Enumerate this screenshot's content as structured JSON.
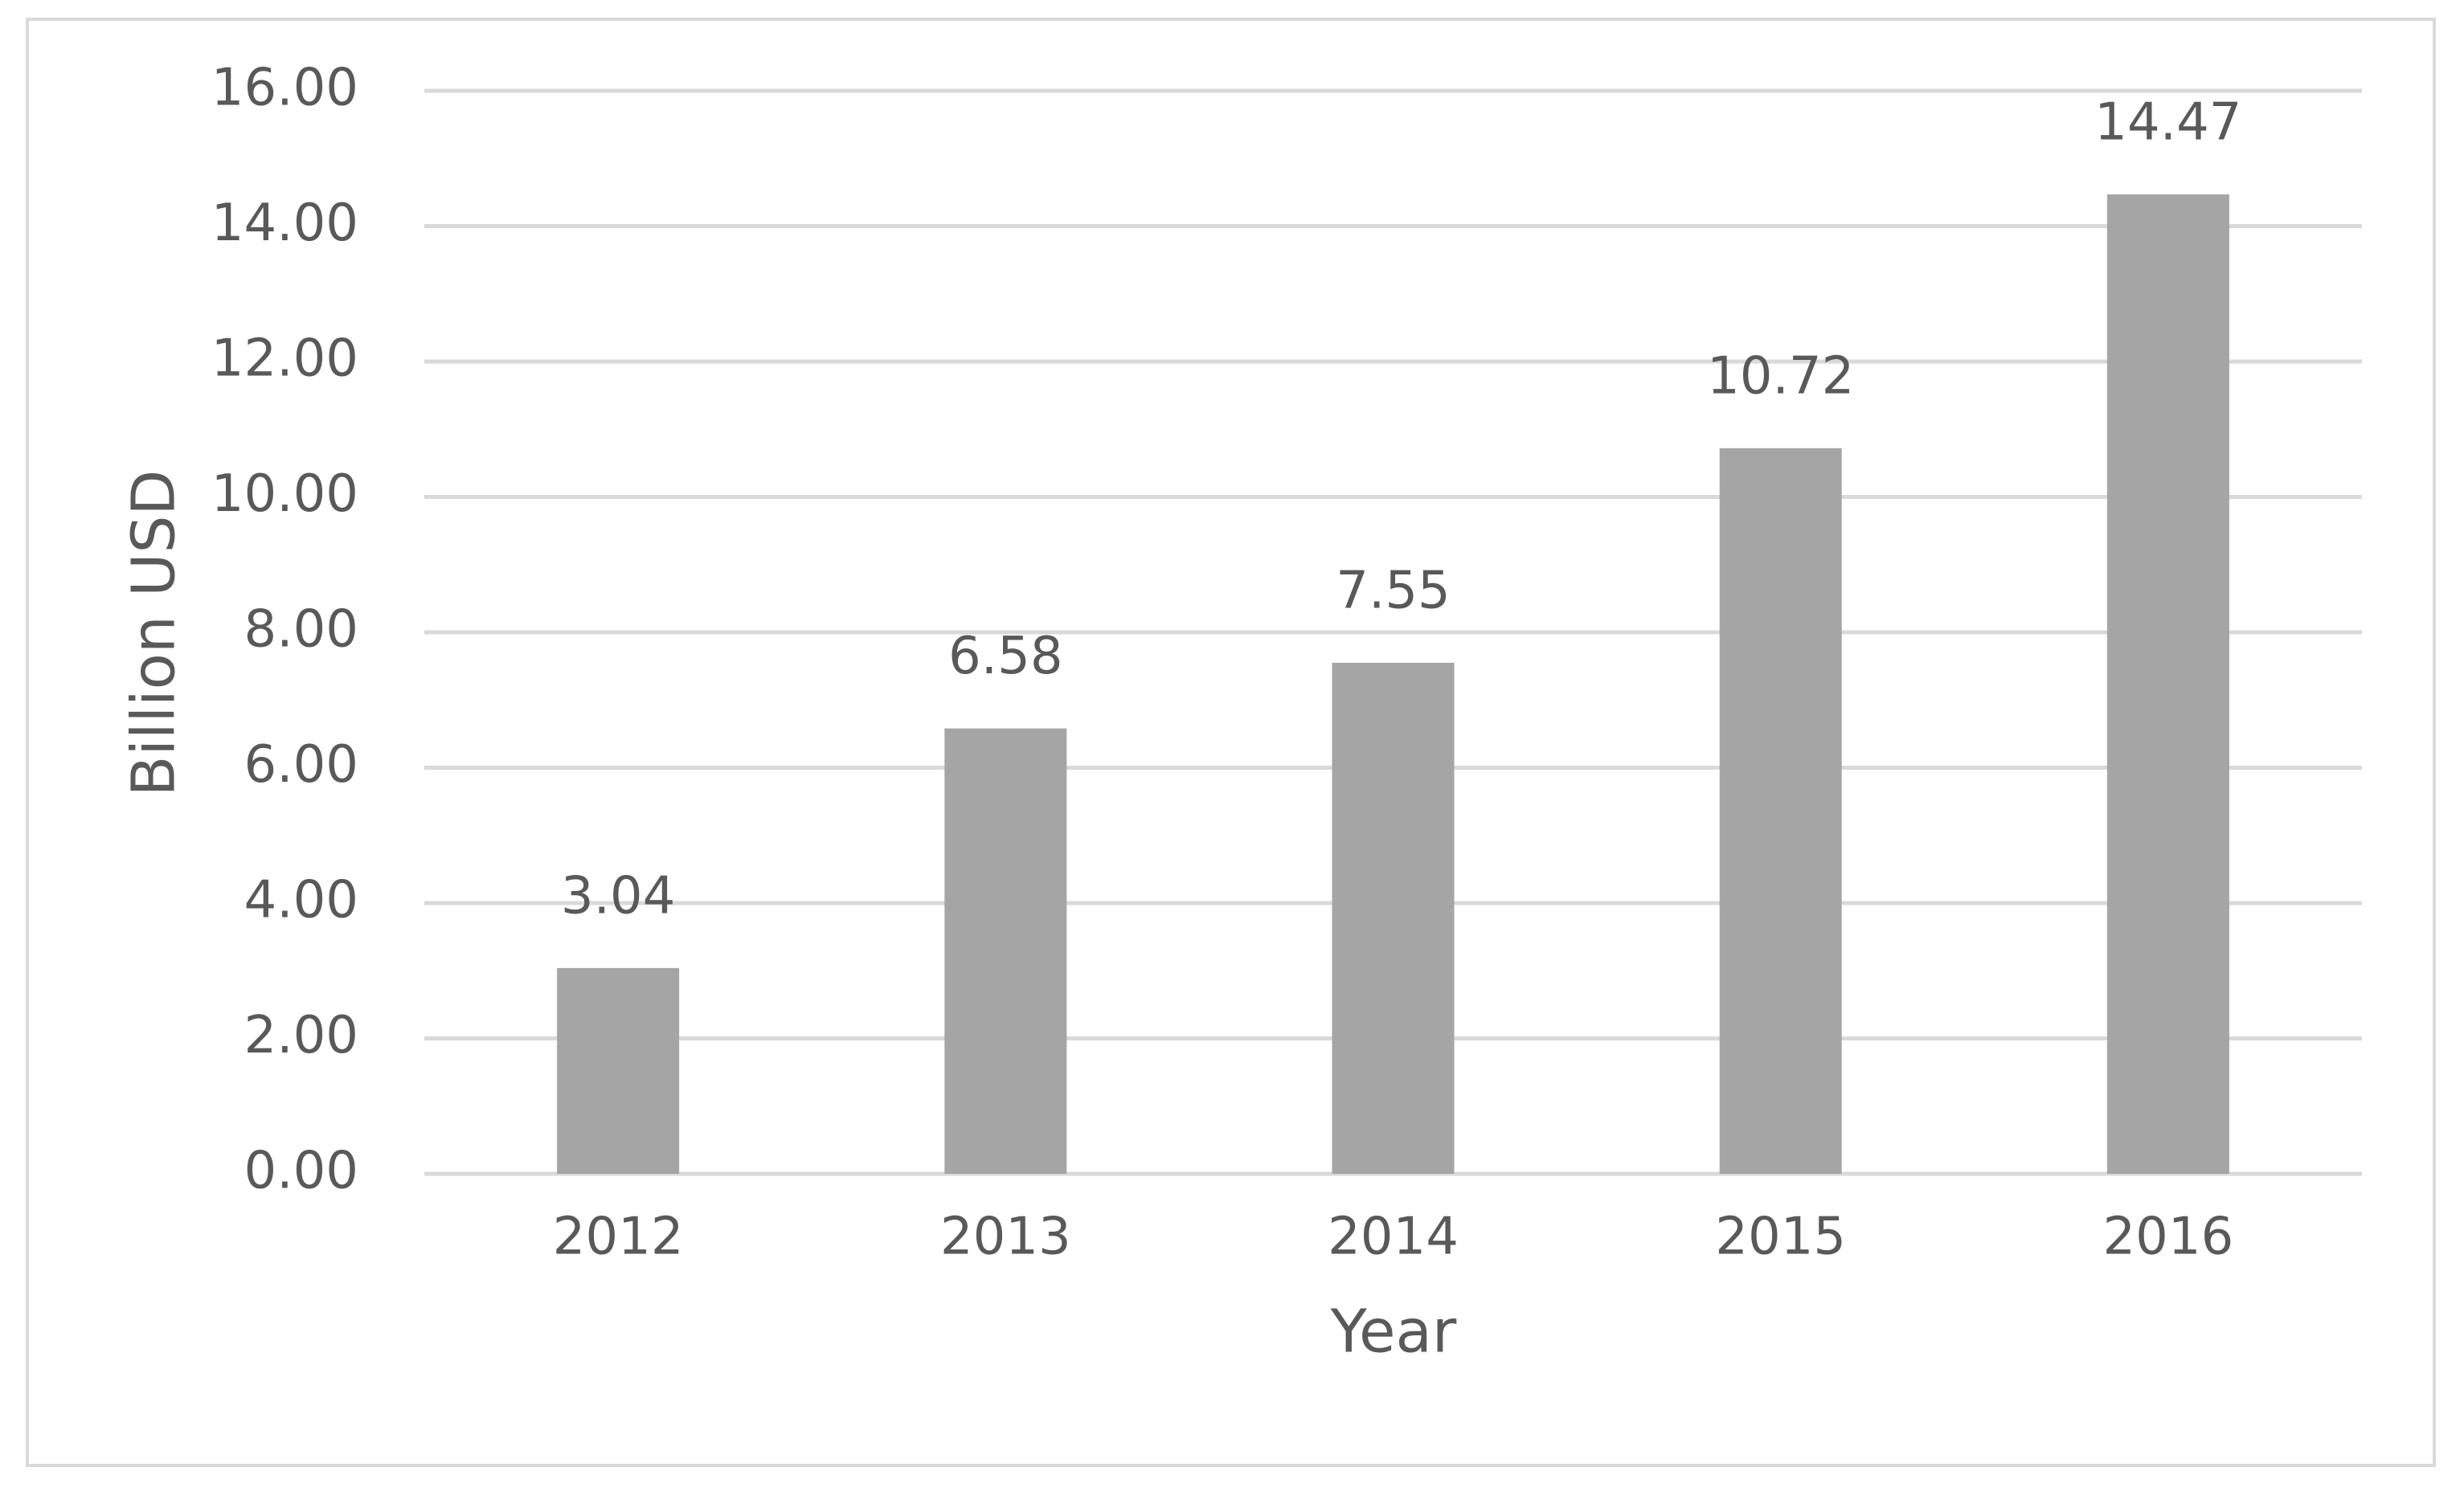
{
  "chart_data": {
    "type": "bar",
    "x_label": "Year",
    "y_label": "Billion USD",
    "categories": [
      "2012",
      "2013",
      "2014",
      "2015",
      "2016"
    ],
    "values": [
      3.04,
      6.58,
      7.55,
      10.72,
      14.47
    ],
    "color": "#a5a5a5",
    "ylim": [
      0,
      16
    ],
    "yticks": [
      {
        "value": 0,
        "label": "0.00"
      },
      {
        "value": 2,
        "label": "2.00"
      },
      {
        "value": 4,
        "label": "4.00"
      },
      {
        "value": 6,
        "label": "6.00"
      },
      {
        "value": 8,
        "label": "8.00"
      },
      {
        "value": 10,
        "label": "10.00"
      },
      {
        "value": 12,
        "label": "12.00"
      },
      {
        "value": 14,
        "label": "14.00"
      },
      {
        "value": 16,
        "label": "16.00"
      }
    ],
    "grid": true
  }
}
